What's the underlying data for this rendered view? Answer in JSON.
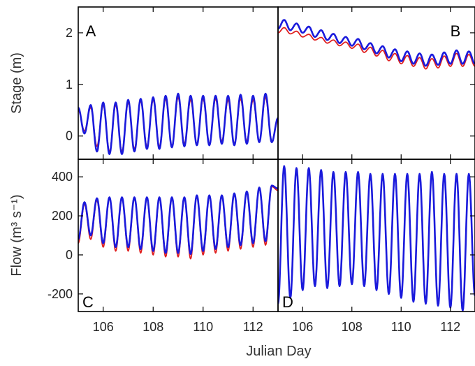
{
  "chart_data": [
    {
      "panel": "A",
      "type": "line",
      "xlim": [
        105.0,
        113.0
      ],
      "ylim": [
        -0.45,
        2.5
      ],
      "yticks": [
        0,
        1,
        2
      ],
      "xticks": [
        106,
        108,
        110,
        112
      ],
      "ylabel": "Stage (m)",
      "series": [
        {
          "color": "#e02020",
          "x": [
            105.0,
            105.25,
            105.5,
            105.75,
            106.0,
            106.25,
            106.5,
            106.75,
            107.0,
            107.25,
            107.5,
            107.75,
            108.0,
            108.25,
            108.5,
            108.75,
            109.0,
            109.25,
            109.5,
            109.75,
            110.0,
            110.25,
            110.5,
            110.75,
            111.0,
            111.25,
            111.5,
            111.75,
            112.0,
            112.25,
            112.5,
            112.75,
            113.0
          ],
          "y": [
            0.5,
            0.1,
            0.55,
            -0.2,
            0.6,
            -0.3,
            0.6,
            -0.3,
            0.65,
            -0.25,
            0.68,
            -0.2,
            0.7,
            -0.2,
            0.72,
            -0.2,
            0.75,
            -0.15,
            0.7,
            -0.15,
            0.72,
            -0.15,
            0.72,
            -0.1,
            0.7,
            -0.15,
            0.72,
            -0.1,
            0.7,
            -0.1,
            0.75,
            -0.1,
            0.3
          ]
        },
        {
          "color": "#1a1adc",
          "x": [
            105.0,
            105.25,
            105.5,
            105.75,
            106.0,
            106.25,
            106.5,
            106.75,
            107.0,
            107.25,
            107.5,
            107.75,
            108.0,
            108.25,
            108.5,
            108.75,
            109.0,
            109.25,
            109.5,
            109.75,
            110.0,
            110.25,
            110.5,
            110.75,
            111.0,
            111.25,
            111.5,
            111.75,
            112.0,
            112.25,
            112.5,
            112.75,
            113.0
          ],
          "y": [
            0.55,
            0.05,
            0.6,
            -0.3,
            0.65,
            -0.35,
            0.65,
            -0.35,
            0.7,
            -0.3,
            0.72,
            -0.25,
            0.75,
            -0.25,
            0.78,
            -0.22,
            0.82,
            -0.2,
            0.78,
            -0.18,
            0.78,
            -0.18,
            0.78,
            -0.15,
            0.78,
            -0.18,
            0.8,
            -0.15,
            0.78,
            -0.12,
            0.82,
            -0.12,
            0.35
          ]
        }
      ]
    },
    {
      "panel": "B",
      "type": "line",
      "xlim": [
        105.0,
        113.0
      ],
      "ylim": [
        -0.45,
        2.5
      ],
      "xticks": [
        106,
        108,
        110,
        112
      ],
      "series": [
        {
          "color": "#e02020",
          "x": [
            105.0,
            105.25,
            105.5,
            105.75,
            106.0,
            106.25,
            106.5,
            106.75,
            107.0,
            107.25,
            107.5,
            107.75,
            108.0,
            108.25,
            108.5,
            108.75,
            109.0,
            109.25,
            109.5,
            109.75,
            110.0,
            110.25,
            110.5,
            110.75,
            111.0,
            111.25,
            111.5,
            111.75,
            112.0,
            112.25,
            112.5,
            112.75,
            113.0
          ],
          "y": [
            2.0,
            2.1,
            1.98,
            2.03,
            1.92,
            1.97,
            1.86,
            1.91,
            1.8,
            1.86,
            1.75,
            1.82,
            1.7,
            1.78,
            1.62,
            1.72,
            1.55,
            1.66,
            1.46,
            1.6,
            1.4,
            1.56,
            1.35,
            1.52,
            1.3,
            1.5,
            1.32,
            1.55,
            1.35,
            1.6,
            1.35,
            1.58,
            1.35
          ]
        },
        {
          "color": "#1a1adc",
          "x": [
            105.0,
            105.25,
            105.5,
            105.75,
            106.0,
            106.25,
            106.5,
            106.75,
            107.0,
            107.25,
            107.5,
            107.75,
            108.0,
            108.25,
            108.5,
            108.75,
            109.0,
            109.25,
            109.5,
            109.75,
            110.0,
            110.25,
            110.5,
            110.75,
            111.0,
            111.25,
            111.5,
            111.75,
            112.0,
            112.25,
            112.5,
            112.75,
            113.0
          ],
          "y": [
            2.08,
            2.25,
            2.05,
            2.18,
            2.0,
            2.12,
            1.92,
            2.05,
            1.86,
            1.98,
            1.8,
            1.92,
            1.75,
            1.88,
            1.68,
            1.8,
            1.6,
            1.74,
            1.52,
            1.68,
            1.45,
            1.64,
            1.4,
            1.6,
            1.36,
            1.58,
            1.38,
            1.62,
            1.4,
            1.66,
            1.4,
            1.64,
            1.4
          ]
        }
      ]
    },
    {
      "panel": "C",
      "type": "line",
      "xlim": [
        105.0,
        113.0
      ],
      "ylim": [
        -290,
        490
      ],
      "yticks": [
        -200,
        0,
        200,
        400
      ],
      "xticks": [
        106,
        108,
        110,
        112
      ],
      "ylabel": "Flow (m³ s⁻¹)",
      "series": [
        {
          "color": "#e02020",
          "x": [
            105.0,
            105.25,
            105.5,
            105.75,
            106.0,
            106.25,
            106.5,
            106.75,
            107.0,
            107.25,
            107.5,
            107.75,
            108.0,
            108.25,
            108.5,
            108.75,
            109.0,
            109.25,
            109.5,
            109.75,
            110.0,
            110.25,
            110.5,
            110.75,
            111.0,
            111.25,
            111.5,
            111.75,
            112.0,
            112.25,
            112.5,
            112.75,
            113.0
          ],
          "y": [
            60,
            260,
            80,
            280,
            40,
            290,
            20,
            290,
            20,
            290,
            10,
            290,
            0,
            290,
            -10,
            290,
            -10,
            290,
            -20,
            300,
            0,
            300,
            10,
            300,
            20,
            310,
            30,
            320,
            40,
            340,
            50,
            350,
            330
          ]
        },
        {
          "color": "#1a1adc",
          "x": [
            105.0,
            105.25,
            105.5,
            105.75,
            106.0,
            106.25,
            106.5,
            106.75,
            107.0,
            107.25,
            107.5,
            107.75,
            108.0,
            108.25,
            108.5,
            108.75,
            109.0,
            109.25,
            109.5,
            109.75,
            110.0,
            110.25,
            110.5,
            110.75,
            111.0,
            111.25,
            111.5,
            111.75,
            112.0,
            112.25,
            112.5,
            112.75,
            113.0
          ],
          "y": [
            80,
            270,
            100,
            290,
            60,
            295,
            40,
            295,
            40,
            295,
            30,
            295,
            20,
            295,
            10,
            295,
            10,
            295,
            5,
            305,
            20,
            305,
            30,
            305,
            40,
            315,
            50,
            325,
            60,
            345,
            70,
            355,
            340
          ]
        }
      ]
    },
    {
      "panel": "D",
      "type": "line",
      "xlim": [
        105.0,
        113.0
      ],
      "ylim": [
        -290,
        490
      ],
      "xticks": [
        106,
        108,
        110,
        112
      ],
      "series": [
        {
          "color": "#e02020",
          "x": [
            105.0,
            105.25,
            105.5,
            105.75,
            106.0,
            106.25,
            106.5,
            106.75,
            107.0,
            107.25,
            107.5,
            107.75,
            108.0,
            108.25,
            108.5,
            108.75,
            109.0,
            109.25,
            109.5,
            109.75,
            110.0,
            110.25,
            110.5,
            110.75,
            111.0,
            111.25,
            111.5,
            111.75,
            112.0,
            112.25,
            112.5,
            112.75,
            113.0
          ],
          "y": [
            -240,
            450,
            -210,
            440,
            -170,
            440,
            -150,
            430,
            -160,
            420,
            -150,
            420,
            -140,
            420,
            -150,
            410,
            -170,
            410,
            -190,
            410,
            -210,
            410,
            -230,
            410,
            -240,
            420,
            -250,
            410,
            -260,
            410,
            -270,
            410,
            -200
          ]
        },
        {
          "color": "#1a1adc",
          "x": [
            105.0,
            105.25,
            105.5,
            105.75,
            106.0,
            106.25,
            106.5,
            106.75,
            107.0,
            107.25,
            107.5,
            107.75,
            108.0,
            108.25,
            108.5,
            108.75,
            109.0,
            109.25,
            109.5,
            109.75,
            110.0,
            110.25,
            110.5,
            110.75,
            111.0,
            111.25,
            111.5,
            111.75,
            112.0,
            112.25,
            112.5,
            112.75,
            113.0
          ],
          "y": [
            -250,
            455,
            -220,
            445,
            -180,
            445,
            -160,
            435,
            -170,
            425,
            -160,
            425,
            -150,
            425,
            -160,
            415,
            -180,
            415,
            -200,
            415,
            -220,
            415,
            -240,
            415,
            -250,
            425,
            -260,
            415,
            -270,
            415,
            -285,
            415,
            -210
          ]
        }
      ]
    }
  ],
  "xlabel": "Julian Day",
  "panel_letters": [
    "A",
    "B",
    "C",
    "D"
  ],
  "colors": {
    "model": "#e02020",
    "observed": "#1a1adc"
  }
}
